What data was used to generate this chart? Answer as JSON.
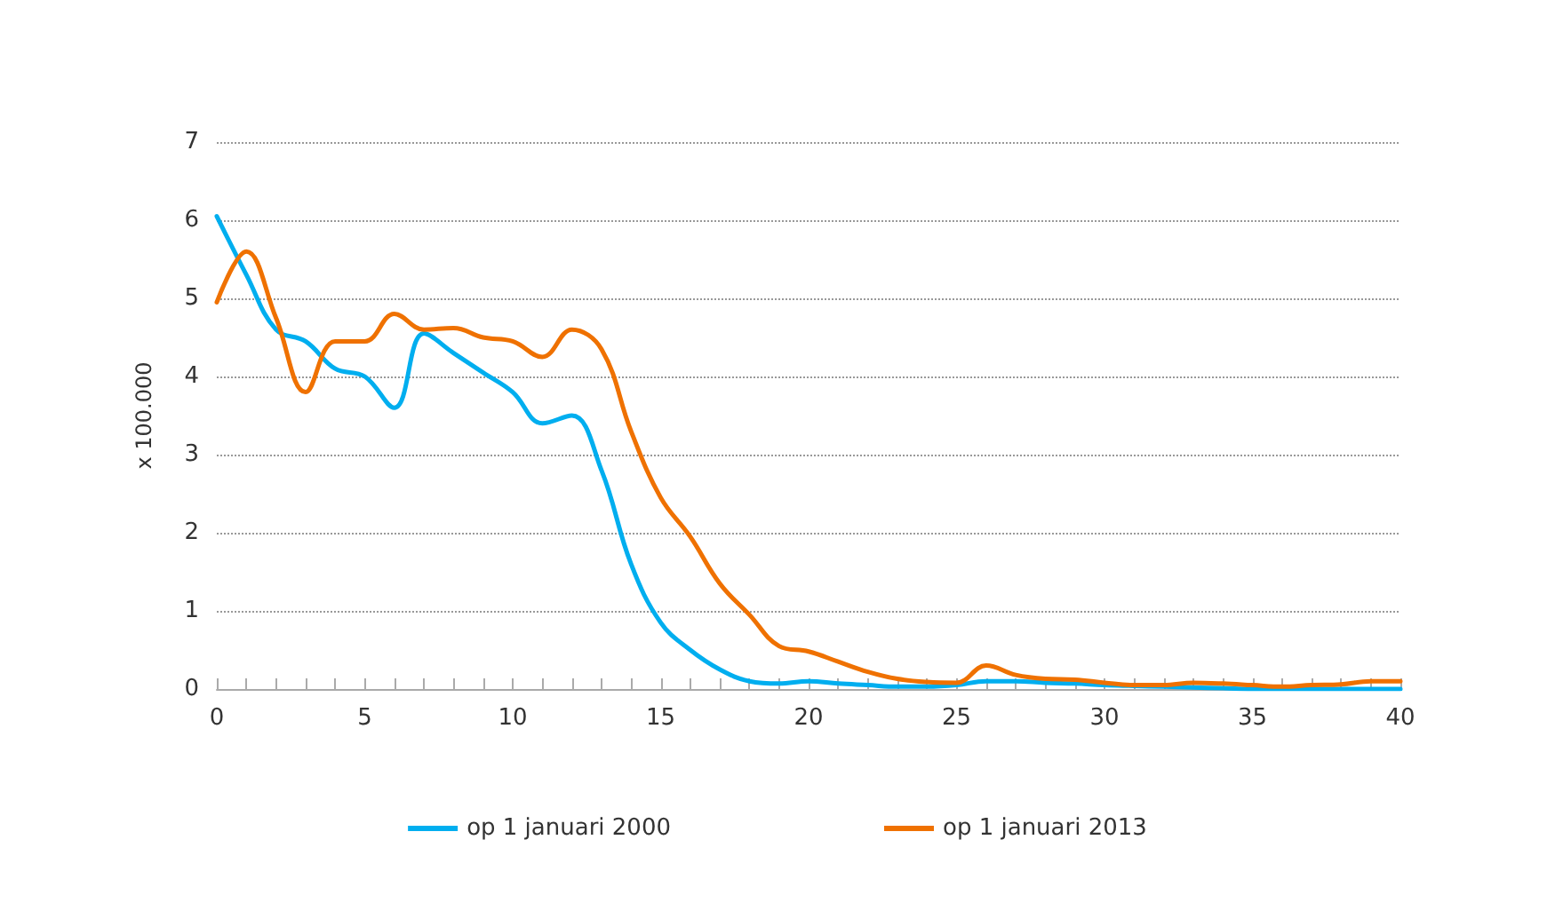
{
  "chart_data": {
    "type": "line",
    "ylabel": "x 100.000",
    "x": [
      0,
      1,
      2,
      3,
      4,
      5,
      6,
      7,
      8,
      9,
      10,
      11,
      12,
      13,
      14,
      15,
      16,
      17,
      18,
      19,
      20,
      21,
      22,
      23,
      24,
      25,
      26,
      27,
      28,
      29,
      30,
      31,
      32,
      33,
      34,
      35,
      36,
      37,
      38,
      39,
      40
    ],
    "series": [
      {
        "name": "op 1 januari 2000",
        "color": "#00aeef",
        "values": [
          6.05,
          5.3,
          4.6,
          4.45,
          4.1,
          4.0,
          3.6,
          4.55,
          4.3,
          4.05,
          3.8,
          3.4,
          3.5,
          2.8,
          1.6,
          0.85,
          0.5,
          0.25,
          0.1,
          0.07,
          0.1,
          0.07,
          0.05,
          0.03,
          0.03,
          0.05,
          0.1,
          0.1,
          0.08,
          0.07,
          0.05,
          0.04,
          0.03,
          0.02,
          0.01,
          0,
          0,
          0,
          0,
          0,
          0
        ]
      },
      {
        "name": "op 1 januari 2013",
        "color": "#ef7100",
        "values": [
          4.95,
          5.6,
          4.75,
          3.8,
          4.45,
          4.45,
          4.8,
          4.6,
          4.62,
          4.5,
          4.45,
          4.25,
          4.6,
          4.35,
          3.3,
          2.45,
          1.95,
          1.35,
          0.95,
          0.55,
          0.48,
          0.35,
          0.22,
          0.13,
          0.09,
          0.08,
          0.3,
          0.18,
          0.13,
          0.12,
          0.08,
          0.05,
          0.05,
          0.08,
          0.07,
          0.05,
          0.03,
          0.05,
          0.06,
          0.1,
          0.1
        ]
      }
    ],
    "xlim": [
      0,
      40
    ],
    "xticks": [
      0,
      {
        "value": 1,
        "label": null
      },
      {
        "value": 2,
        "label": null
      },
      {
        "value": 3,
        "label": null
      },
      {
        "value": 4,
        "label": null
      },
      5,
      {
        "value": 6,
        "label": null
      },
      {
        "value": 7,
        "label": null
      },
      {
        "value": 8,
        "label": null
      },
      {
        "value": 9,
        "label": null
      },
      10,
      {
        "value": 11,
        "label": null
      },
      {
        "value": 12,
        "label": null
      },
      {
        "value": 13,
        "label": null
      },
      {
        "value": 14,
        "label": null
      },
      15,
      {
        "value": 16,
        "label": null
      },
      {
        "value": 17,
        "label": null
      },
      {
        "value": 18,
        "label": null
      },
      {
        "value": 19,
        "label": null
      },
      20,
      {
        "value": 21,
        "label": null
      },
      {
        "value": 22,
        "label": null
      },
      {
        "value": 23,
        "label": null
      },
      {
        "value": 24,
        "label": null
      },
      25,
      {
        "value": 26,
        "label": null
      },
      {
        "value": 27,
        "label": null
      },
      {
        "value": 28,
        "label": null
      },
      {
        "value": 29,
        "label": null
      },
      30,
      {
        "value": 31,
        "label": null
      },
      {
        "value": 32,
        "label": null
      },
      {
        "value": 33,
        "label": null
      },
      {
        "value": 34,
        "label": null
      },
      35,
      {
        "value": 36,
        "label": null
      },
      {
        "value": 37,
        "label": null
      },
      {
        "value": 38,
        "label": null
      },
      {
        "value": 39,
        "label": null
      },
      40
    ],
    "ylim": [
      0,
      7
    ],
    "yticks": [
      0,
      1,
      2,
      3,
      4,
      5,
      6,
      7
    ],
    "grid": "y",
    "legend": "bottom",
    "marker": "none",
    "line_style": "solid"
  }
}
